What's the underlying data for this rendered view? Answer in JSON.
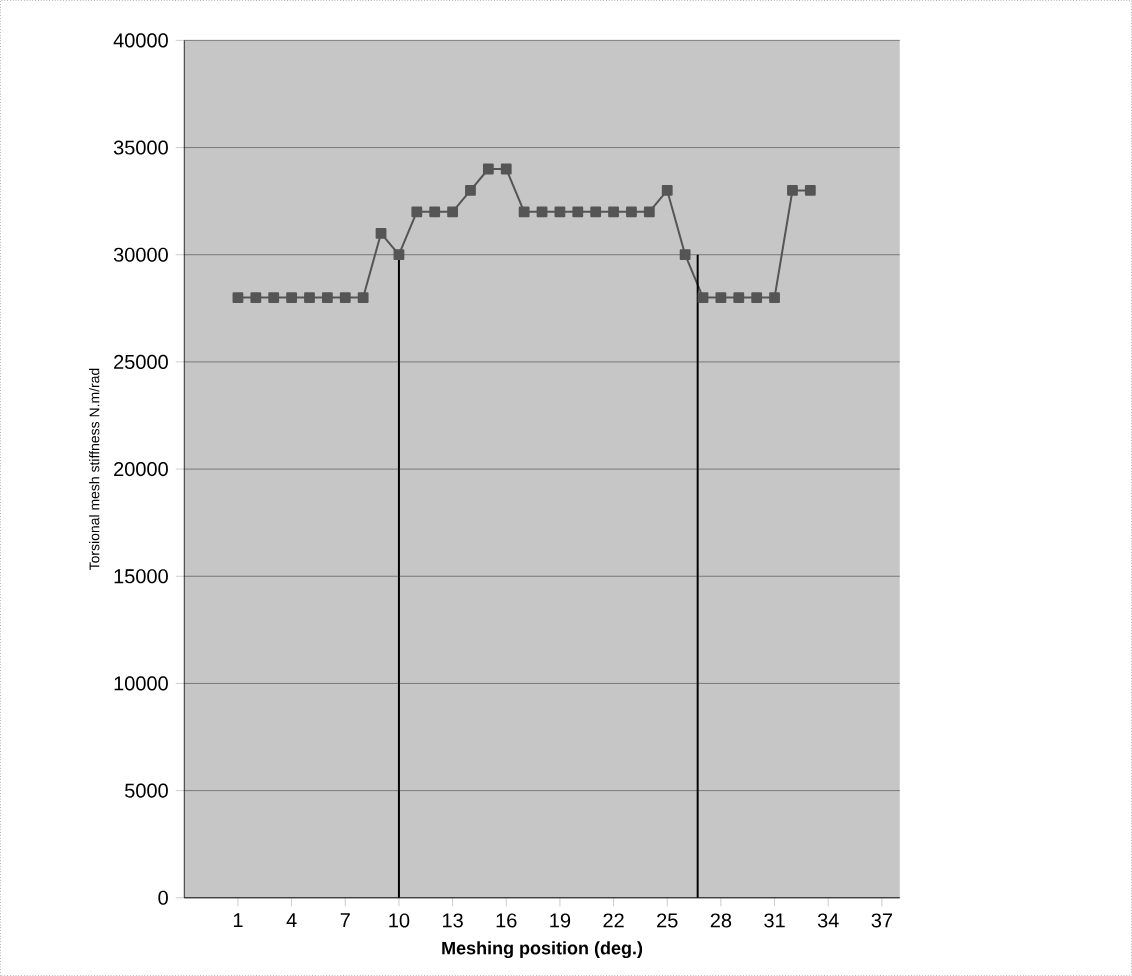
{
  "chart_data": {
    "type": "line",
    "xlabel": "Meshing position (deg.)",
    "ylabel": "Torsional mesh stiffness N.m/rad",
    "xlim": [
      -2,
      38
    ],
    "ylim": [
      0,
      40000
    ],
    "xticks": [
      1,
      4,
      7,
      10,
      13,
      16,
      19,
      22,
      25,
      28,
      31,
      34,
      37
    ],
    "yticks": [
      0,
      5000,
      10000,
      15000,
      20000,
      25000,
      30000,
      35000,
      40000
    ],
    "grid": "y",
    "series": [
      {
        "color": "#555555",
        "marker": "square",
        "x": [
          1,
          2,
          3,
          4,
          5,
          6,
          7,
          8,
          9,
          10,
          11,
          12,
          13,
          14,
          15,
          16,
          17,
          18,
          19,
          20,
          21,
          22,
          23,
          24,
          25,
          26,
          27,
          28,
          29,
          30,
          31,
          32,
          33
        ],
        "values": [
          28000,
          28000,
          28000,
          28000,
          28000,
          28000,
          28000,
          28000,
          31000,
          30000,
          32000,
          32000,
          32000,
          33000,
          34000,
          34000,
          32000,
          32000,
          32000,
          32000,
          32000,
          32000,
          32000,
          32000,
          33000,
          30000,
          28000,
          28000,
          28000,
          28000,
          28000,
          33000,
          33000
        ]
      },
      {
        "color": "#000000",
        "marker": "none",
        "x": [
          10,
          10
        ],
        "values": [
          0,
          30000
        ]
      },
      {
        "color": "#000000",
        "marker": "none",
        "x": [
          26.7,
          26.7
        ],
        "values": [
          0,
          30000
        ]
      }
    ]
  }
}
